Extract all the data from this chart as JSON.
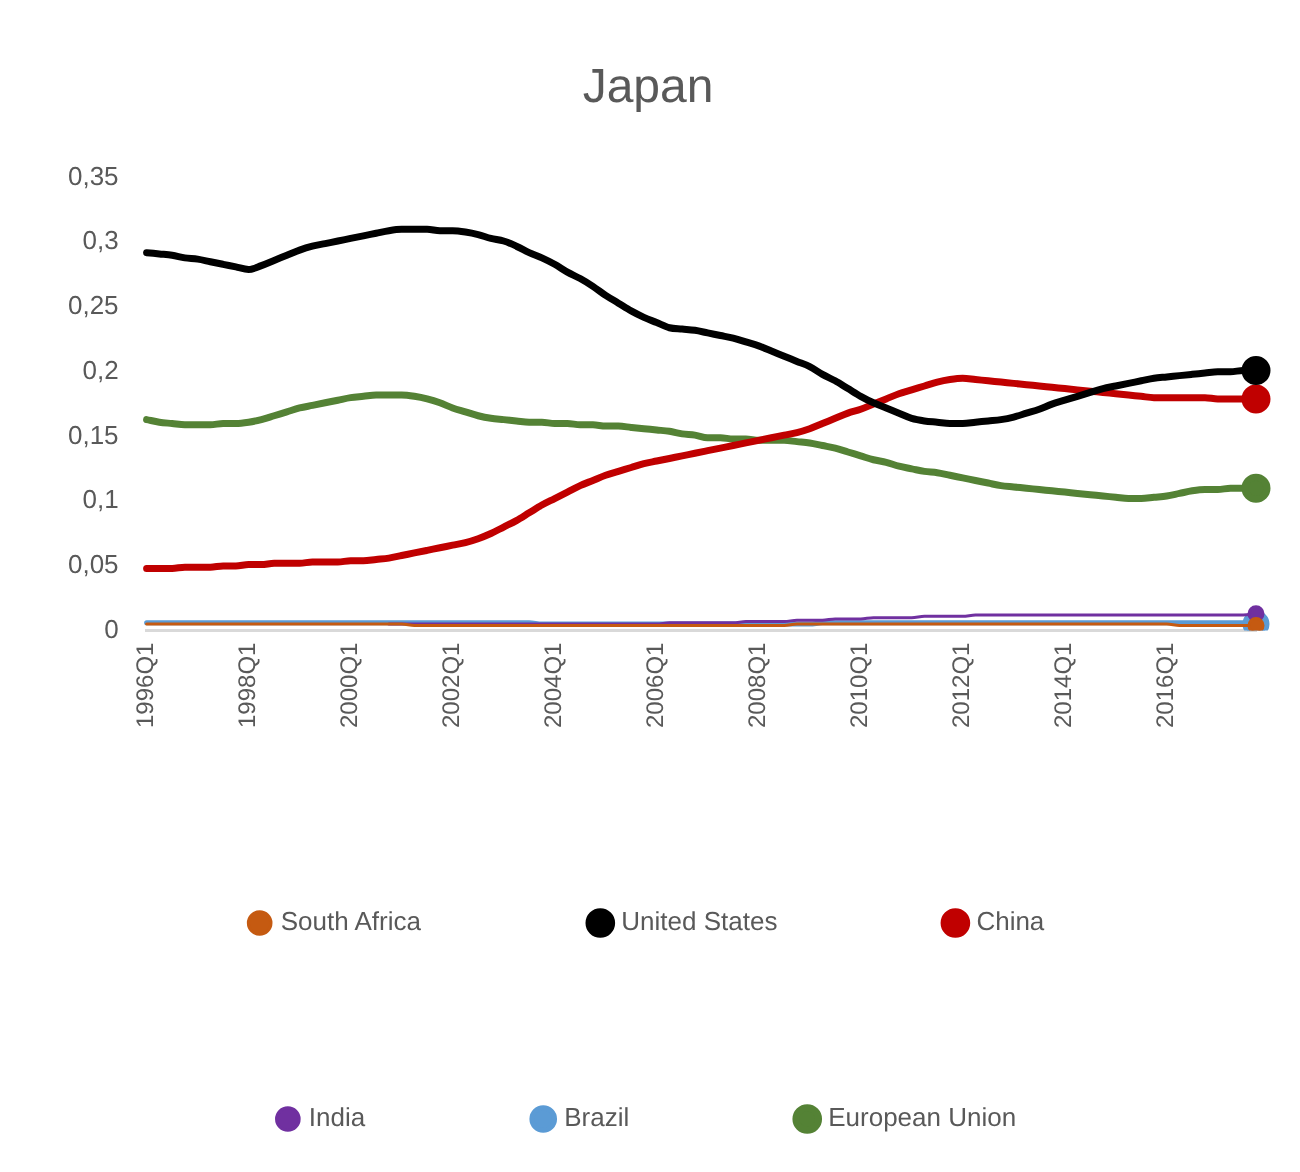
{
  "chart_data": {
    "type": "line",
    "title": "Japan",
    "categories": [
      "1996Q1",
      null,
      null,
      null,
      null,
      null,
      null,
      null,
      "1998Q1",
      null,
      null,
      null,
      null,
      null,
      null,
      null,
      "2000Q1",
      null,
      null,
      null,
      null,
      null,
      null,
      null,
      "2002Q1",
      null,
      null,
      null,
      null,
      null,
      null,
      null,
      "2004Q1",
      null,
      null,
      null,
      null,
      null,
      null,
      null,
      "2006Q1",
      null,
      null,
      null,
      null,
      null,
      null,
      null,
      "2008Q1",
      null,
      null,
      null,
      null,
      null,
      null,
      null,
      "2010Q1",
      null,
      null,
      null,
      null,
      null,
      null,
      null,
      "2012Q1",
      null,
      null,
      null,
      null,
      null,
      null,
      null,
      "2014Q1",
      null,
      null,
      null,
      null,
      null,
      null,
      null,
      "2016Q1",
      null,
      null,
      null,
      null,
      null,
      null,
      null
    ],
    "series": [
      {
        "name": "South Africa",
        "color": "#c55a11",
        "values": [
          0.005,
          0.005,
          0.005,
          0.005,
          0.005,
          0.005,
          0.005,
          0.005,
          0.005,
          0.005,
          0.005,
          0.005,
          0.005,
          0.005,
          0.005,
          0.005,
          0.005,
          0.005,
          0.005,
          0.005,
          0.005,
          0.004,
          0.004,
          0.004,
          0.004,
          0.004,
          0.004,
          0.004,
          0.004,
          0.004,
          0.004,
          0.004,
          0.004,
          0.004,
          0.004,
          0.004,
          0.004,
          0.004,
          0.004,
          0.004,
          0.004,
          0.004,
          0.004,
          0.004,
          0.004,
          0.004,
          0.004,
          0.004,
          0.004,
          0.004,
          0.004,
          0.005,
          0.005,
          0.005,
          0.005,
          0.005,
          0.005,
          0.005,
          0.005,
          0.005,
          0.005,
          0.005,
          0.005,
          0.005,
          0.005,
          0.005,
          0.005,
          0.005,
          0.005,
          0.005,
          0.005,
          0.005,
          0.005,
          0.005,
          0.005,
          0.005,
          0.005,
          0.005,
          0.005,
          0.005,
          0.005,
          0.004,
          0.004,
          0.004,
          0.004,
          0.004,
          0.004,
          0.004
        ]
      },
      {
        "name": "United States",
        "color": "#000000",
        "values": [
          0.292,
          0.291,
          0.29,
          0.288,
          0.287,
          0.285,
          0.283,
          0.281,
          0.279,
          0.282,
          0.286,
          0.29,
          0.294,
          0.297,
          0.299,
          0.301,
          0.303,
          0.305,
          0.307,
          0.309,
          0.31,
          0.31,
          0.31,
          0.309,
          0.309,
          0.308,
          0.306,
          0.303,
          0.301,
          0.297,
          0.292,
          0.288,
          0.283,
          0.277,
          0.272,
          0.266,
          0.259,
          0.253,
          0.247,
          0.242,
          0.238,
          0.234,
          0.233,
          0.232,
          0.23,
          0.228,
          0.226,
          0.223,
          0.22,
          0.216,
          0.212,
          0.208,
          0.204,
          0.198,
          0.193,
          0.187,
          0.181,
          0.176,
          0.172,
          0.168,
          0.164,
          0.162,
          0.161,
          0.16,
          0.16,
          0.161,
          0.162,
          0.163,
          0.165,
          0.168,
          0.171,
          0.175,
          0.178,
          0.181,
          0.184,
          0.187,
          0.189,
          0.191,
          0.193,
          0.195,
          0.196,
          0.197,
          0.198,
          0.199,
          0.2,
          0.2,
          0.201,
          0.201
        ]
      },
      {
        "name": "China",
        "color": "#c00000",
        "values": [
          0.048,
          0.048,
          0.048,
          0.049,
          0.049,
          0.049,
          0.05,
          0.05,
          0.051,
          0.051,
          0.052,
          0.052,
          0.052,
          0.053,
          0.053,
          0.053,
          0.054,
          0.054,
          0.055,
          0.056,
          0.058,
          0.06,
          0.062,
          0.064,
          0.066,
          0.068,
          0.071,
          0.075,
          0.08,
          0.085,
          0.091,
          0.097,
          0.102,
          0.107,
          0.112,
          0.116,
          0.12,
          0.123,
          0.126,
          0.129,
          0.131,
          0.133,
          0.135,
          0.137,
          0.139,
          0.141,
          0.143,
          0.145,
          0.147,
          0.149,
          0.151,
          0.153,
          0.156,
          0.16,
          0.164,
          0.168,
          0.171,
          0.175,
          0.179,
          0.183,
          0.186,
          0.189,
          0.192,
          0.194,
          0.195,
          0.194,
          0.193,
          0.192,
          0.191,
          0.19,
          0.189,
          0.188,
          0.187,
          0.186,
          0.185,
          0.184,
          0.183,
          0.182,
          0.181,
          0.18,
          0.18,
          0.18,
          0.18,
          0.18,
          0.179,
          0.179,
          0.179,
          0.179
        ]
      },
      {
        "name": "India",
        "color": "#7030a0",
        "values": [
          null,
          null,
          null,
          null,
          null,
          null,
          null,
          null,
          null,
          null,
          null,
          null,
          null,
          null,
          null,
          null,
          null,
          null,
          null,
          0.005,
          0.005,
          0.005,
          0.005,
          0.005,
          0.005,
          0.005,
          0.005,
          0.005,
          0.005,
          0.005,
          0.005,
          0.005,
          0.005,
          0.005,
          0.005,
          0.005,
          0.005,
          0.005,
          0.005,
          0.005,
          0.005,
          0.006,
          0.006,
          0.006,
          0.006,
          0.006,
          0.006,
          0.007,
          0.007,
          0.007,
          0.007,
          0.008,
          0.008,
          0.008,
          0.009,
          0.009,
          0.009,
          0.01,
          0.01,
          0.01,
          0.01,
          0.011,
          0.011,
          0.011,
          0.011,
          0.012,
          0.012,
          0.012,
          0.012,
          0.012,
          0.012,
          0.012,
          0.012,
          0.012,
          0.012,
          0.012,
          0.012,
          0.012,
          0.012,
          0.012,
          0.012,
          0.012,
          0.012,
          0.012,
          0.012,
          0.012,
          0.012,
          0.013
        ]
      },
      {
        "name": "Brazil",
        "color": "#5b9bd5",
        "values": [
          0.006,
          0.006,
          0.006,
          0.006,
          0.006,
          0.006,
          0.006,
          0.006,
          0.006,
          0.006,
          0.006,
          0.006,
          0.006,
          0.006,
          0.006,
          0.006,
          0.006,
          0.006,
          0.006,
          0.006,
          0.006,
          0.006,
          0.006,
          0.006,
          0.006,
          0.006,
          0.006,
          0.006,
          0.006,
          0.006,
          0.006,
          0.005,
          0.005,
          0.005,
          0.005,
          0.005,
          0.005,
          0.005,
          0.005,
          0.005,
          0.005,
          0.005,
          0.005,
          0.005,
          0.005,
          0.005,
          0.005,
          0.005,
          0.005,
          0.005,
          0.005,
          0.005,
          0.005,
          0.006,
          0.006,
          0.006,
          0.006,
          0.006,
          0.006,
          0.006,
          0.006,
          0.006,
          0.006,
          0.006,
          0.006,
          0.006,
          0.006,
          0.006,
          0.006,
          0.006,
          0.006,
          0.006,
          0.006,
          0.006,
          0.006,
          0.006,
          0.006,
          0.006,
          0.006,
          0.006,
          0.006,
          0.006,
          0.006,
          0.006,
          0.006,
          0.006,
          0.006,
          0.005
        ]
      },
      {
        "name": "European Union",
        "color": "#548235",
        "values": [
          0.163,
          0.161,
          0.16,
          0.159,
          0.159,
          0.159,
          0.16,
          0.16,
          0.161,
          0.163,
          0.166,
          0.169,
          0.172,
          0.174,
          0.176,
          0.178,
          0.18,
          0.181,
          0.182,
          0.182,
          0.182,
          0.181,
          0.179,
          0.176,
          0.172,
          0.169,
          0.166,
          0.164,
          0.163,
          0.162,
          0.161,
          0.161,
          0.16,
          0.16,
          0.159,
          0.159,
          0.158,
          0.158,
          0.157,
          0.156,
          0.155,
          0.154,
          0.152,
          0.151,
          0.149,
          0.149,
          0.148,
          0.148,
          0.147,
          0.147,
          0.147,
          0.146,
          0.145,
          0.143,
          0.141,
          0.138,
          0.135,
          0.132,
          0.13,
          0.127,
          0.125,
          0.123,
          0.122,
          0.12,
          0.118,
          0.116,
          0.114,
          0.112,
          0.111,
          0.11,
          0.109,
          0.108,
          0.107,
          0.106,
          0.105,
          0.104,
          0.103,
          0.102,
          0.102,
          0.103,
          0.104,
          0.106,
          0.108,
          0.109,
          0.109,
          0.11,
          0.11,
          0.11
        ]
      }
    ],
    "ylim": [
      0,
      0.35
    ],
    "yticks": [
      {
        "value": 0,
        "label": "0"
      },
      {
        "value": 0.05,
        "label": "0,05"
      },
      {
        "value": 0.1,
        "label": "0,1"
      },
      {
        "value": 0.15,
        "label": "0,15"
      },
      {
        "value": 0.2,
        "label": "0,2"
      },
      {
        "value": 0.25,
        "label": "0,25"
      },
      {
        "value": 0.3,
        "label": "0,3"
      },
      {
        "value": 0.35,
        "label": "0,35"
      }
    ],
    "grid": false,
    "legend": "bottom"
  }
}
